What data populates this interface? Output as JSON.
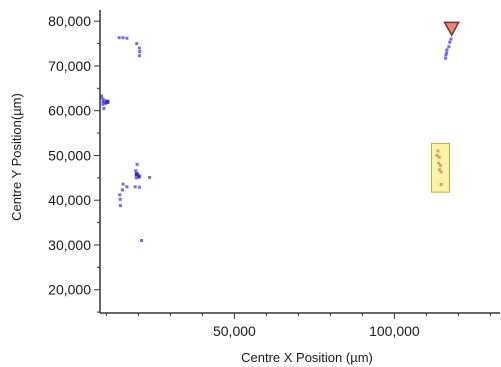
{
  "chart_data": {
    "type": "scatter",
    "title": "",
    "xlabel": "Centre X Position (µm)",
    "ylabel": "Centre Y Position(µm)",
    "xlim": [
      8000,
      133000
    ],
    "ylim": [
      14800,
      82500
    ],
    "grid": false,
    "legend": "none",
    "x_ticks": [
      {
        "value": 50000,
        "label": "50,000"
      },
      {
        "value": 100000,
        "label": "100,000"
      }
    ],
    "y_ticks": [
      {
        "value": 20000,
        "label": "20,000"
      },
      {
        "value": 30000,
        "label": "30,000"
      },
      {
        "value": 40000,
        "label": "40,000"
      },
      {
        "value": 50000,
        "label": "50,000"
      },
      {
        "value": 60000,
        "label": "60,000"
      },
      {
        "value": 70000,
        "label": "70,000"
      },
      {
        "value": 80000,
        "label": "80,000"
      }
    ],
    "colors": {
      "points": "#6f6ff0",
      "points_dark": "#2a2ad8",
      "highlight_fill": "#fbf3a6",
      "highlight_stroke": "#c9a83a",
      "highlight_points": "#e0a060",
      "marker_fill": "#e98878",
      "marker_stroke": "#7a3030",
      "axis": "#333333"
    },
    "points": [
      {
        "x": 8500,
        "y": 63300
      },
      {
        "x": 8600,
        "y": 62800
      },
      {
        "x": 9000,
        "y": 62500
      },
      {
        "x": 8900,
        "y": 62000
      },
      {
        "x": 9600,
        "y": 61800,
        "dark": true
      },
      {
        "x": 8900,
        "y": 61400
      },
      {
        "x": 9200,
        "y": 60500
      },
      {
        "x": 9700,
        "y": 62200
      },
      {
        "x": 10300,
        "y": 62000,
        "dark": true
      },
      {
        "x": 14000,
        "y": 76300
      },
      {
        "x": 15200,
        "y": 76300
      },
      {
        "x": 16400,
        "y": 76200
      },
      {
        "x": 19500,
        "y": 75000
      },
      {
        "x": 20300,
        "y": 74000
      },
      {
        "x": 20400,
        "y": 73200
      },
      {
        "x": 20300,
        "y": 72300
      },
      {
        "x": 19600,
        "y": 48000
      },
      {
        "x": 19200,
        "y": 46600
      },
      {
        "x": 19500,
        "y": 45800,
        "dark": true
      },
      {
        "x": 20100,
        "y": 45300,
        "dark": true
      },
      {
        "x": 19300,
        "y": 45000
      },
      {
        "x": 15200,
        "y": 43600
      },
      {
        "x": 16400,
        "y": 43000
      },
      {
        "x": 15000,
        "y": 42300
      },
      {
        "x": 19000,
        "y": 43000
      },
      {
        "x": 20300,
        "y": 42900
      },
      {
        "x": 23500,
        "y": 45100
      },
      {
        "x": 14200,
        "y": 41200
      },
      {
        "x": 14300,
        "y": 40200
      },
      {
        "x": 14400,
        "y": 38800
      },
      {
        "x": 21000,
        "y": 31000
      },
      {
        "x": 117700,
        "y": 76000
      },
      {
        "x": 117300,
        "y": 75300
      },
      {
        "x": 117000,
        "y": 74300
      },
      {
        "x": 116400,
        "y": 73600
      },
      {
        "x": 116100,
        "y": 72500
      },
      {
        "x": 116000,
        "y": 71700
      },
      {
        "x": 116300,
        "y": 72900
      }
    ],
    "highlight": {
      "x_range": [
        111600,
        117200
      ],
      "y_range": [
        41800,
        52700
      ],
      "points": [
        {
          "x": 113600,
          "y": 51000
        },
        {
          "x": 113300,
          "y": 50000
        },
        {
          "x": 114000,
          "y": 49600
        },
        {
          "x": 113800,
          "y": 48300
        },
        {
          "x": 114400,
          "y": 47800
        },
        {
          "x": 114100,
          "y": 46800
        },
        {
          "x": 114600,
          "y": 46300
        },
        {
          "x": 114600,
          "y": 43500
        }
      ]
    },
    "marker": {
      "shape": "triangle-down",
      "x": 117900,
      "y": 78400
    }
  }
}
